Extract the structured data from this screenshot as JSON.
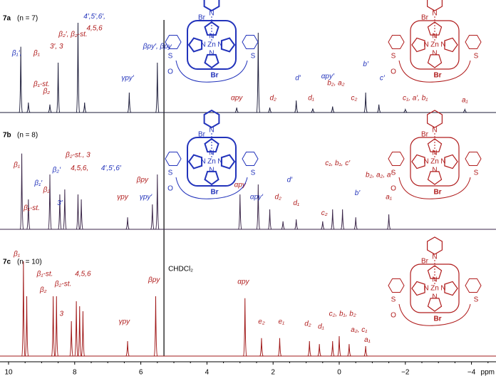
{
  "chart_data": {
    "type": "spectrum",
    "xlim": [
      10.26,
      -4.6
    ],
    "xticks": [
      10,
      8,
      6,
      4,
      2,
      0,
      {
        "value": -2,
        "label": "−2"
      },
      {
        "value": -4,
        "label": "−4"
      }
    ],
    "xlabel": "ppm",
    "ylim": [
      0,
      1
    ],
    "solvent": {
      "label": "CHDCl₂",
      "x": 5.3
    },
    "structure": {
      "metal": "Zn",
      "halogen": "Br",
      "nitrogen": "N",
      "sulfur": "S",
      "oxygen": "O"
    },
    "panels": [
      {
        "label": "7a",
        "sublabel": "(n = 7)",
        "color": "#1c1c3a",
        "x": [
          9.63,
          9.4,
          8.75,
          8.5,
          7.9,
          7.7,
          6.35,
          5.5,
          3.1,
          2.45,
          2.1,
          1.3,
          0.8,
          0.2,
          -0.8,
          -1.2,
          -2.0,
          -3.8
        ],
        "values": [
          0.66,
          0.1,
          0.08,
          0.5,
          0.9,
          0.1,
          0.2,
          0.5,
          0.05,
          0.8,
          0.05,
          0.12,
          0.04,
          0.06,
          0.2,
          0.08,
          0.03,
          0.03
        ],
        "annotations": [
          {
            "text": "β₁′,",
            "x": 9.75,
            "y": 0.55,
            "color": "#2233bb"
          },
          {
            "text": "β₁",
            "x": 9.15,
            "y": 0.55,
            "color": "#b01c1c"
          },
          {
            "text": "β₁-st.",
            "x": 9.0,
            "y": 0.24,
            "color": "#b01c1c"
          },
          {
            "text": "β₂",
            "x": 8.85,
            "y": 0.17,
            "color": "#b01c1c"
          },
          {
            "text": "β₂′, β₂-st.",
            "x": 8.05,
            "y": 0.74,
            "color": "#b01c1c"
          },
          {
            "text": "3′, 3",
            "x": 8.55,
            "y": 0.62,
            "color": "#b01c1c"
          },
          {
            "text": "4′,5′,6′,",
            "x": 7.4,
            "y": 0.92,
            "color": "#2233bb"
          },
          {
            "text": "4,5,6",
            "x": 7.4,
            "y": 0.8,
            "color": "#b01c1c"
          },
          {
            "text": "γpy′",
            "x": 6.4,
            "y": 0.3,
            "color": "#2233bb"
          },
          {
            "text": "βpy′, βpy",
            "x": 5.5,
            "y": 0.62,
            "color": "#2233bb"
          },
          {
            "text": "αpy′",
            "x": 0.35,
            "y": 0.32,
            "color": "#2233bb"
          },
          {
            "text": "αpy",
            "x": 3.1,
            "y": 0.1,
            "color": "#b01c1c"
          },
          {
            "text": "d′",
            "x": 1.25,
            "y": 0.3,
            "color": "#2233bb"
          },
          {
            "text": "d₂",
            "x": 2.0,
            "y": 0.1,
            "color": "#b01c1c"
          },
          {
            "text": "d₁",
            "x": 0.85,
            "y": 0.1,
            "color": "#b01c1c"
          },
          {
            "text": "b₂, a₂",
            "x": 0.1,
            "y": 0.25,
            "color": "#b01c1c"
          },
          {
            "text": "c₂",
            "x": -0.45,
            "y": 0.1,
            "color": "#b01c1c"
          },
          {
            "text": "b′",
            "x": -0.8,
            "y": 0.44,
            "color": "#2233bb"
          },
          {
            "text": "c′",
            "x": -1.3,
            "y": 0.3,
            "color": "#2233bb"
          },
          {
            "text": "c₁, a′, b₁",
            "x": -2.3,
            "y": 0.1,
            "color": "#b01c1c"
          },
          {
            "text": "a₁",
            "x": -3.8,
            "y": 0.08,
            "color": "#b01c1c"
          }
        ]
      },
      {
        "label": "7b",
        "sublabel": "(n = 8)",
        "color": "#3a2548",
        "x": [
          9.6,
          9.4,
          8.75,
          8.45,
          8.3,
          7.9,
          7.8,
          6.4,
          5.65,
          5.5,
          3.0,
          2.45,
          2.1,
          1.7,
          1.3,
          0.5,
          0.2,
          -0.1,
          -0.5,
          -1.5
        ],
        "values": [
          0.76,
          0.3,
          0.55,
          0.35,
          0.4,
          0.35,
          0.3,
          0.12,
          0.25,
          0.55,
          0.35,
          0.45,
          0.2,
          0.08,
          0.1,
          0.08,
          0.2,
          0.2,
          0.12,
          0.15
        ],
        "annotations": [
          {
            "text": "β₁",
            "x": 9.75,
            "y": 0.6,
            "color": "#b01c1c"
          },
          {
            "text": "β₁′",
            "x": 9.1,
            "y": 0.42,
            "color": "#2233bb"
          },
          {
            "text": "β₁-st.",
            "x": 9.3,
            "y": 0.17,
            "color": "#b01c1c"
          },
          {
            "text": "β₂",
            "x": 8.85,
            "y": 0.35,
            "color": "#b01c1c"
          },
          {
            "text": "β₂′",
            "x": 8.55,
            "y": 0.55,
            "color": "#2233bb"
          },
          {
            "text": "3′",
            "x": 8.45,
            "y": 0.22,
            "color": "#2233bb"
          },
          {
            "text": "β₂-st., 3",
            "x": 7.9,
            "y": 0.7,
            "color": "#b01c1c"
          },
          {
            "text": "4,5,6,",
            "x": 7.85,
            "y": 0.57,
            "color": "#b01c1c"
          },
          {
            "text": "4′,5′,6′",
            "x": 6.9,
            "y": 0.57,
            "color": "#2233bb"
          },
          {
            "text": "βpy",
            "x": 5.95,
            "y": 0.45,
            "color": "#b01c1c"
          },
          {
            "text": "γpy",
            "x": 6.55,
            "y": 0.28,
            "color": "#b01c1c"
          },
          {
            "text": "γpy′",
            "x": 5.85,
            "y": 0.28,
            "color": "#2233bb"
          },
          {
            "text": "αpy",
            "x": 3.0,
            "y": 0.4,
            "color": "#b01c1c"
          },
          {
            "text": "αpy′",
            "x": 2.5,
            "y": 0.28,
            "color": "#2233bb"
          },
          {
            "text": "d′",
            "x": 1.5,
            "y": 0.45,
            "color": "#2233bb"
          },
          {
            "text": "d₂",
            "x": 1.85,
            "y": 0.28,
            "color": "#b01c1c"
          },
          {
            "text": "d₁",
            "x": 1.3,
            "y": 0.22,
            "color": "#b01c1c"
          },
          {
            "text": "c₂",
            "x": 0.45,
            "y": 0.12,
            "color": "#b01c1c"
          },
          {
            "text": "c₁, b₁, c′",
            "x": 0.05,
            "y": 0.62,
            "color": "#b01c1c"
          },
          {
            "text": "b₂, a₂, a′",
            "x": -1.2,
            "y": 0.5,
            "color": "#b01c1c"
          },
          {
            "text": "b′",
            "x": -0.55,
            "y": 0.32,
            "color": "#2233bb"
          },
          {
            "text": "a₁",
            "x": -1.5,
            "y": 0.28,
            "color": "#b01c1c"
          }
        ]
      },
      {
        "label": "7c",
        "sublabel": "(n = 10)",
        "color": "#a01818",
        "x": [
          9.55,
          9.45,
          8.65,
          8.55,
          8.1,
          7.95,
          7.85,
          7.75,
          6.4,
          5.55,
          2.85,
          2.35,
          1.8,
          0.9,
          0.6,
          0.2,
          0.0,
          -0.3,
          -0.8
        ],
        "values": [
          0.95,
          0.6,
          0.6,
          0.6,
          0.35,
          0.55,
          0.5,
          0.45,
          0.15,
          0.6,
          0.58,
          0.18,
          0.18,
          0.15,
          0.12,
          0.15,
          0.2,
          0.12,
          0.1
        ],
        "annotations": [
          {
            "text": "β₁",
            "x": 9.75,
            "y": 0.98,
            "color": "#b01c1c"
          },
          {
            "text": "β₁-st.",
            "x": 8.9,
            "y": 0.78,
            "color": "#b01c1c"
          },
          {
            "text": "β₂",
            "x": 8.95,
            "y": 0.62,
            "color": "#b01c1c"
          },
          {
            "text": "β₂-st.",
            "x": 8.35,
            "y": 0.68,
            "color": "#b01c1c"
          },
          {
            "text": "3",
            "x": 8.4,
            "y": 0.38,
            "color": "#b01c1c"
          },
          {
            "text": "4,5,6",
            "x": 7.75,
            "y": 0.78,
            "color": "#b01c1c"
          },
          {
            "text": "γpy",
            "x": 6.5,
            "y": 0.3,
            "color": "#b01c1c"
          },
          {
            "text": "βpy",
            "x": 5.6,
            "y": 0.72,
            "color": "#b01c1c"
          },
          {
            "text": "αpy",
            "x": 2.9,
            "y": 0.7,
            "color": "#b01c1c"
          },
          {
            "text": "e₂",
            "x": 2.35,
            "y": 0.3,
            "color": "#b01c1c"
          },
          {
            "text": "e₁",
            "x": 1.75,
            "y": 0.3,
            "color": "#b01c1c"
          },
          {
            "text": "d₂",
            "x": 0.95,
            "y": 0.28,
            "color": "#b01c1c"
          },
          {
            "text": "d₁",
            "x": 0.55,
            "y": 0.25,
            "color": "#b01c1c"
          },
          {
            "text": "c₂, b₁, b₂",
            "x": -0.1,
            "y": 0.38,
            "color": "#b01c1c"
          },
          {
            "text": "a₂, c₁",
            "x": -0.6,
            "y": 0.22,
            "color": "#b01c1c"
          },
          {
            "text": "a₁",
            "x": -0.85,
            "y": 0.12,
            "color": "#b01c1c"
          }
        ]
      }
    ]
  }
}
